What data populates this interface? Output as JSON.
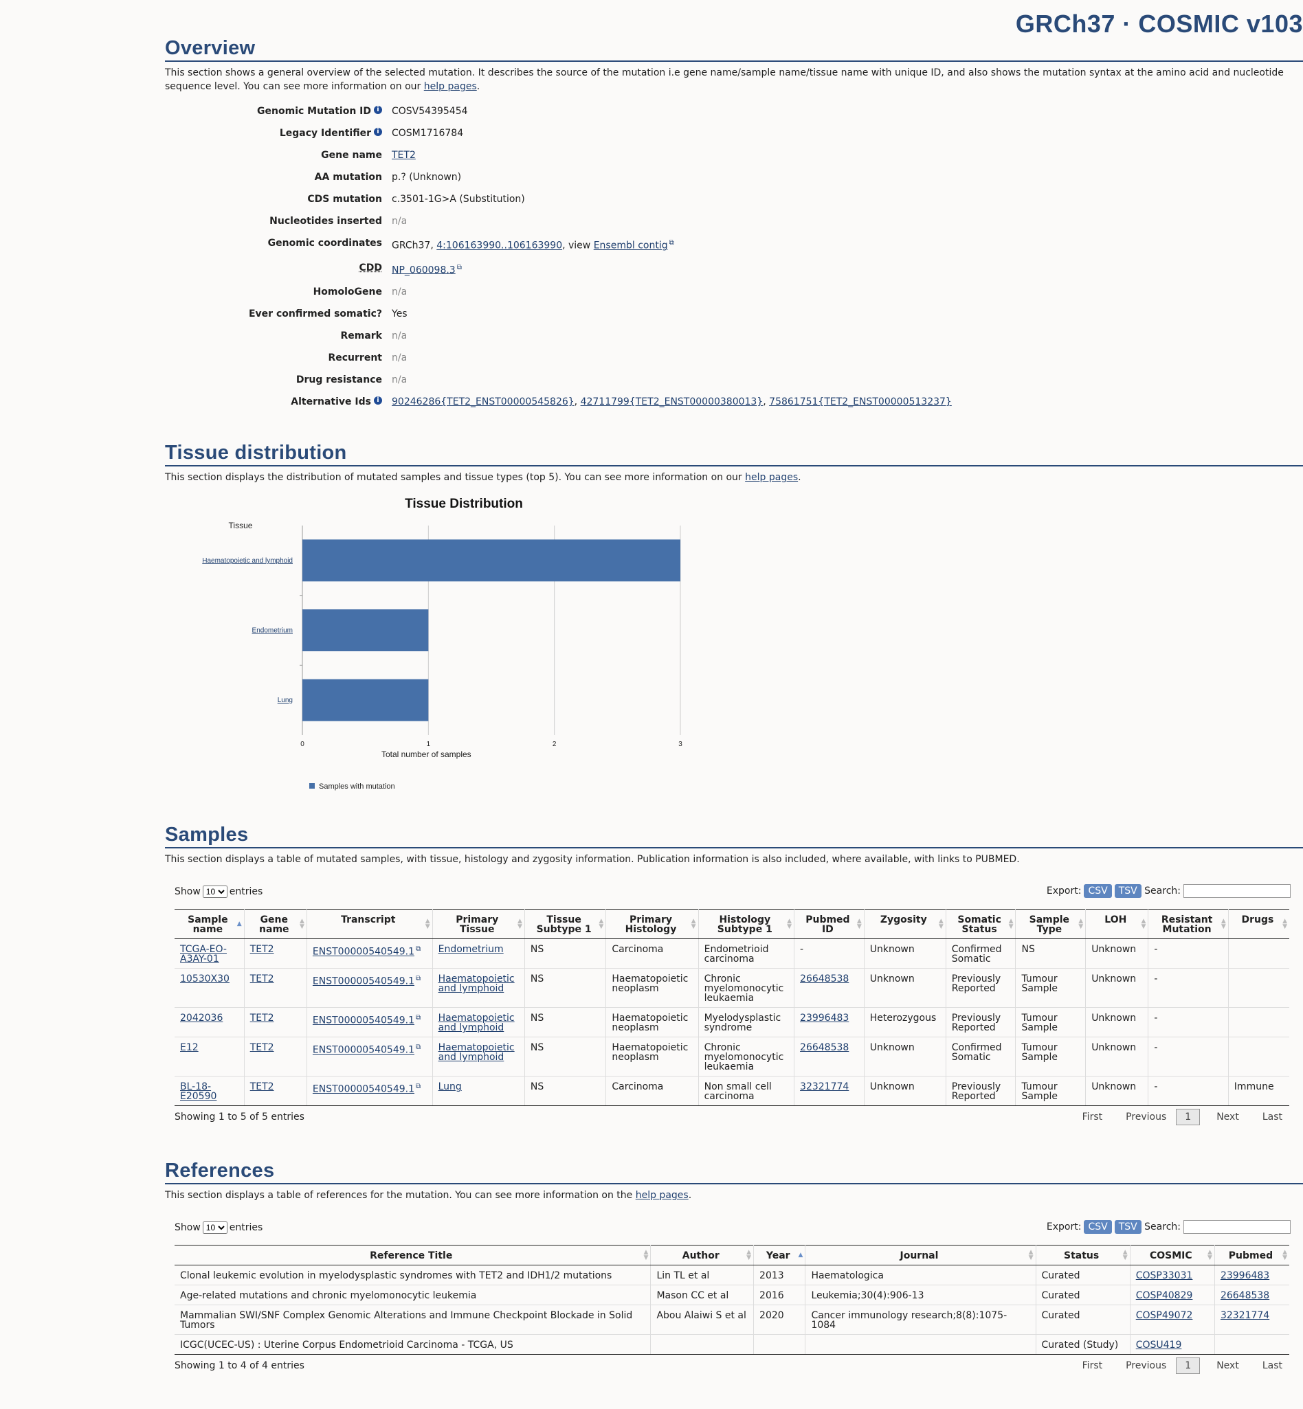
{
  "release": "GRCh37 · COSMIC v103",
  "overview": {
    "title": "Overview",
    "desc_pre": "This section shows a general overview of the selected mutation. It describes the source of the mutation i.e gene name/sample name/tissue name with unique ID, and also shows the mutation syntax at the amino acid and nucleotide sequence level. You can see more information on our ",
    "desc_link": "help pages",
    "desc_post": ".",
    "genomic_mutation_id_label": "Genomic Mutation ID",
    "genomic_mutation_id": "COSV54395454",
    "legacy_identifier_label": "Legacy Identifier",
    "legacy_identifier": "COSM1716784",
    "gene_name_label": "Gene name",
    "gene_name": "TET2",
    "aa_mutation_label": "AA mutation",
    "aa_mutation": "p.? (Unknown)",
    "cds_mutation_label": "CDS mutation",
    "cds_mutation": "c.3501-1G>A (Substitution)",
    "nucleotides_inserted_label": "Nucleotides inserted",
    "nucleotides_inserted": "n/a",
    "genomic_coordinates_label": "Genomic coordinates",
    "genomic_coordinates_prefix": "GRCh37, ",
    "genomic_coordinates_link": "4:106163990..106163990",
    "genomic_coordinates_mid": ", view ",
    "genomic_coordinates_link2": "Ensembl contig",
    "cdd_label": "CDD",
    "cdd": "NP_060098.3",
    "homologene_label": "HomoloGene",
    "homologene": "n/a",
    "ever_confirmed_label": "Ever confirmed somatic?",
    "ever_confirmed": "Yes",
    "remark_label": "Remark",
    "remark": "n/a",
    "recurrent_label": "Recurrent",
    "recurrent": "n/a",
    "drug_resistance_label": "Drug resistance",
    "drug_resistance": "n/a",
    "alternative_ids_label": "Alternative Ids",
    "alt_id_1": "90246286{TET2_ENST00000545826}",
    "alt_id_2": "42711799{TET2_ENST00000380013}",
    "alt_id_3": "75861751{TET2_ENST00000513237}",
    "comma": ", "
  },
  "tissue": {
    "title": "Tissue distribution",
    "desc_pre": "This section displays the distribution of mutated samples and tissue types (top 5). You can see more information on our ",
    "desc_link": "help pages",
    "desc_post": "."
  },
  "chart_data": {
    "type": "bar",
    "orientation": "horizontal",
    "title": "Tissue Distribution",
    "ylabel": "Tissue",
    "xlabel": "Total number of samples",
    "categories": [
      "Haematopoietic and lymphoid",
      "Endometrium",
      "Lung"
    ],
    "series": [
      {
        "name": "Samples with mutation",
        "values": [
          3,
          1,
          1
        ],
        "color": "#4670a8"
      }
    ],
    "xlim": [
      0,
      3
    ],
    "ticks": [
      "0",
      "1",
      "2",
      "3"
    ],
    "grid": true,
    "legend": "bottom-left"
  },
  "samples": {
    "title": "Samples",
    "desc": "This section displays a table of mutated samples, with tissue, histology and zygosity information. Publication information is also included, where available, with links to PUBMED.",
    "show_label": "Show",
    "show_value": "10",
    "entries_label": "entries",
    "export_label": "Export:",
    "csv": "CSV",
    "tsv": "TSV",
    "search_label": "Search:",
    "headers": [
      "Sample name",
      "Gene name",
      "Transcript",
      "Primary Tissue",
      "Tissue Subtype 1",
      "Primary Histology",
      "Histology Subtype 1",
      "Pubmed ID",
      "Zygosity",
      "Somatic Status",
      "Sample Type",
      "LOH",
      "Resistant Mutation",
      "Drugs"
    ],
    "rows": [
      [
        "TCGA-EO-A3AY-01",
        "TET2",
        "ENST00000540549.1",
        "Endometrium",
        "NS",
        "Carcinoma",
        "Endometrioid carcinoma",
        "-",
        "Unknown",
        "Confirmed Somatic",
        "NS",
        "Unknown",
        "-",
        ""
      ],
      [
        "10530X30",
        "TET2",
        "ENST00000540549.1",
        "Haematopoietic and lymphoid",
        "NS",
        "Haematopoietic neoplasm",
        "Chronic myelomonocytic leukaemia",
        "26648538",
        "Unknown",
        "Previously Reported",
        "Tumour Sample",
        "Unknown",
        "-",
        ""
      ],
      [
        "2042036",
        "TET2",
        "ENST00000540549.1",
        "Haematopoietic and lymphoid",
        "NS",
        "Haematopoietic neoplasm",
        "Myelodysplastic syndrome",
        "23996483",
        "Heterozygous",
        "Previously Reported",
        "Tumour Sample",
        "Unknown",
        "-",
        ""
      ],
      [
        "E12",
        "TET2",
        "ENST00000540549.1",
        "Haematopoietic and lymphoid",
        "NS",
        "Haematopoietic neoplasm",
        "Chronic myelomonocytic leukaemia",
        "26648538",
        "Unknown",
        "Confirmed Somatic",
        "Tumour Sample",
        "Unknown",
        "-",
        ""
      ],
      [
        "BL-18-E20590",
        "TET2",
        "ENST00000540549.1",
        "Lung",
        "NS",
        "Carcinoma",
        "Non small cell carcinoma",
        "32321774",
        "Unknown",
        "Previously Reported",
        "Tumour Sample",
        "Unknown",
        "-",
        "Immune"
      ]
    ],
    "showing": "Showing 1 to 5 of 5 entries",
    "first": "First",
    "previous": "Previous",
    "page": "1",
    "next": "Next",
    "last": "Last"
  },
  "references": {
    "title": "References",
    "desc_pre": "This section displays a table of references for the mutation. You can see more information on the ",
    "desc_link": "help pages",
    "desc_post": ".",
    "show_label": "Show",
    "show_value": "10",
    "entries_label": "entries",
    "export_label": "Export:",
    "csv": "CSV",
    "tsv": "TSV",
    "search_label": "Search:",
    "headers": [
      "Reference Title",
      "Author",
      "Year",
      "Journal",
      "Status",
      "COSMIC",
      "Pubmed"
    ],
    "rows": [
      [
        "Clonal leukemic evolution in myelodysplastic syndromes with TET2 and IDH1/2 mutations",
        "Lin TL et al",
        "2013",
        "Haematologica",
        "Curated",
        "COSP33031",
        "23996483"
      ],
      [
        "Age-related mutations and chronic myelomonocytic leukemia",
        "Mason CC et al",
        "2016",
        "Leukemia;30(4):906-13",
        "Curated",
        "COSP40829",
        "26648538"
      ],
      [
        "Mammalian SWI/SNF Complex Genomic Alterations and Immune Checkpoint Blockade in Solid Tumors",
        "Abou Alaiwi S et al",
        "2020",
        "Cancer immunology research;8(8):1075-1084",
        "Curated",
        "COSP49072",
        "32321774"
      ],
      [
        "ICGC(UCEC-US) : Uterine Corpus Endometrioid Carcinoma - TCGA, US",
        "",
        "",
        "",
        "Curated (Study)",
        "COSU419",
        ""
      ]
    ],
    "showing": "Showing 1 to 4 of 4 entries",
    "first": "First",
    "previous": "Previous",
    "page": "1",
    "next": "Next",
    "last": "Last"
  }
}
